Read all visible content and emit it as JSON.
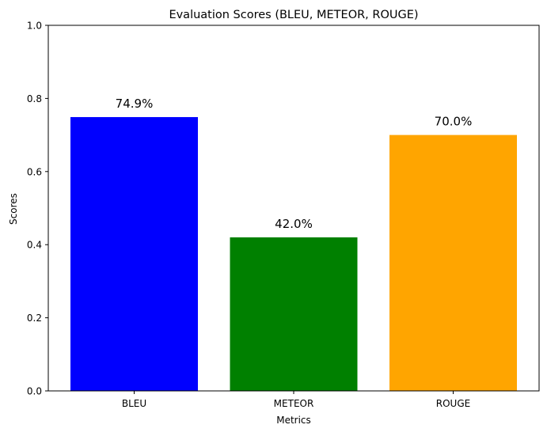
{
  "chart_data": {
    "type": "bar",
    "title": "Evaluation Scores (BLEU, METEOR, ROUGE)",
    "xlabel": "Metrics",
    "ylabel": "Scores",
    "categories": [
      "BLEU",
      "METEOR",
      "ROUGE"
    ],
    "values": [
      0.749,
      0.42,
      0.7
    ],
    "data_labels": [
      "74.9%",
      "42.0%",
      "70.0%"
    ],
    "colors": [
      "#0000ff",
      "#008000",
      "#ffa500"
    ],
    "ylim": [
      0,
      1.0
    ],
    "yticks": [
      0.0,
      0.2,
      0.4,
      0.6,
      0.8,
      1.0
    ],
    "ytick_labels": [
      "0.0",
      "0.2",
      "0.4",
      "0.6",
      "0.8",
      "1.0"
    ],
    "grid": false,
    "legend": "none"
  }
}
